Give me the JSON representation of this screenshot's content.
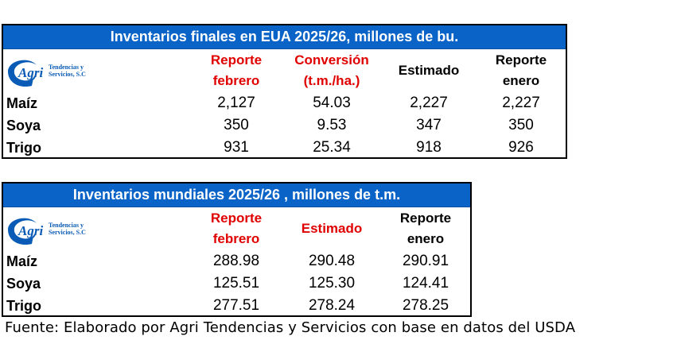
{
  "logo": {
    "mark": "Agri",
    "line1": "Tendencias y",
    "line2": "Servicios, S.C",
    "brand_color": "#0a5bb5"
  },
  "us_table": {
    "title": "Inventarios finales en EUA 2025/26, millones de bu.",
    "headers": [
      {
        "l1": "Reporte",
        "l2": "febrero",
        "color": "red"
      },
      {
        "l1": "Conversión",
        "l2": "(t.m./ha.)",
        "color": "red"
      },
      {
        "l1": "Estimado",
        "l2": "",
        "color": "black"
      },
      {
        "l1": "Reporte",
        "l2": "enero",
        "color": "black"
      }
    ],
    "rows": [
      {
        "label": "Maíz",
        "values": [
          "2,127",
          "54.03",
          "2,227",
          "2,227"
        ]
      },
      {
        "label": "Soya",
        "values": [
          "350",
          "9.53",
          "347",
          "350"
        ]
      },
      {
        "label": "Trigo",
        "values": [
          "931",
          "25.34",
          "918",
          "926"
        ]
      }
    ]
  },
  "world_table": {
    "title": "Inventarios mundiales 2025/26 , millones de t.m.",
    "headers": [
      {
        "l1": "Reporte",
        "l2": "febrero",
        "color": "red"
      },
      {
        "l1": "Estimado",
        "l2": "",
        "color": "red"
      },
      {
        "l1": "Reporte",
        "l2": "enero",
        "color": "black"
      }
    ],
    "rows": [
      {
        "label": "Maíz",
        "values": [
          "288.98",
          "290.48",
          "290.91"
        ]
      },
      {
        "label": "Soya",
        "values": [
          "125.51",
          "125.30",
          "124.41"
        ]
      },
      {
        "label": "Trigo",
        "values": [
          "277.51",
          "278.24",
          "278.25"
        ]
      }
    ]
  },
  "colors": {
    "title_bg": "#0a63c7",
    "red_header": "#e00000"
  },
  "footer": "Fuente: Elaborado por Agri Tendencias y Servicios con base en datos del USDA"
}
